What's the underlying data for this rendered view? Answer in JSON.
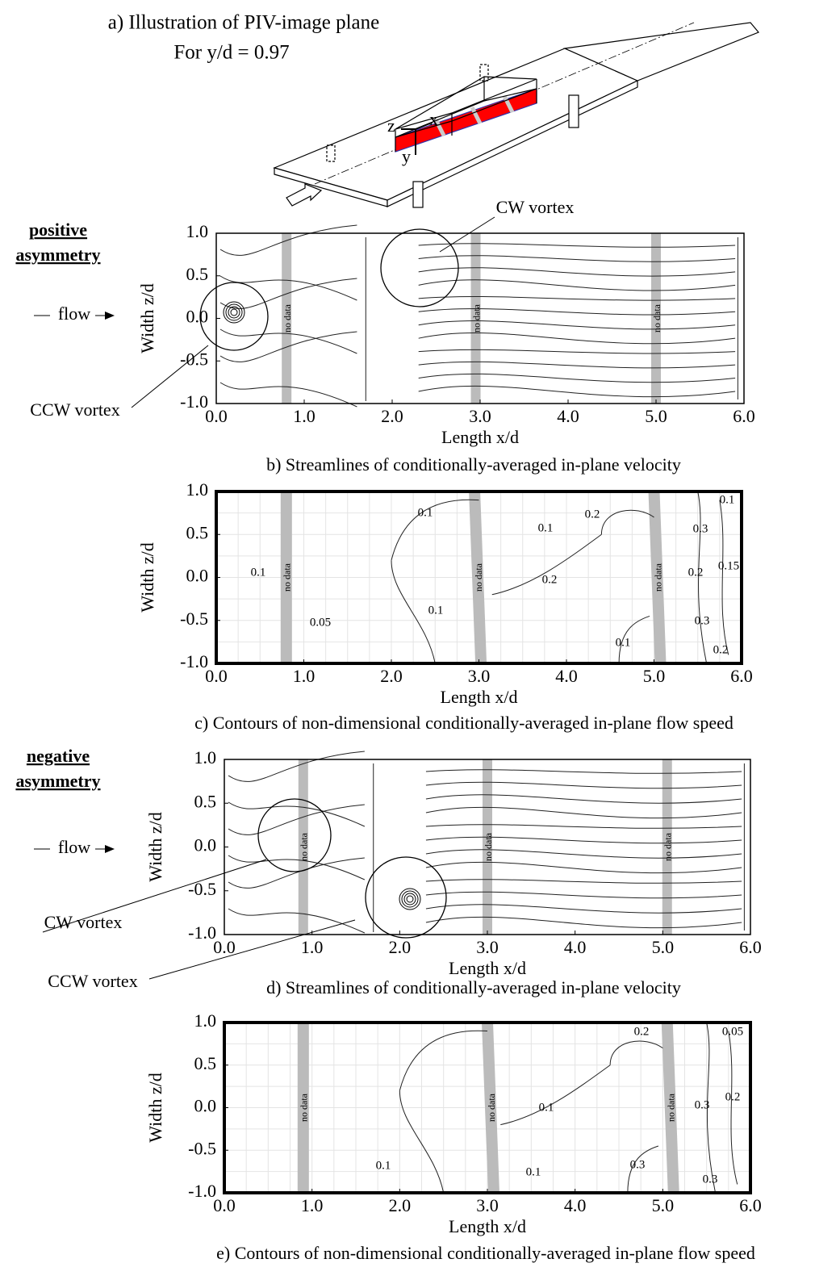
{
  "panel_a": {
    "title": "a) Illustration of PIV-image plane",
    "subtitle": "For y/d = 0.97",
    "axis_names": [
      "z",
      "x",
      "y"
    ]
  },
  "chart_data": [
    {
      "type": "streamline",
      "caption": "b) Streamlines of conditionally-averaged in-plane velocity",
      "x_label": "Length x/d",
      "y_label": "Width z/d",
      "xlim": [
        0,
        6
      ],
      "ylim": [
        -1,
        1
      ],
      "xticks": [
        {
          "value": 0,
          "label": "0.0"
        },
        {
          "value": 1,
          "label": "1.0"
        },
        {
          "value": 2,
          "label": "2.0"
        },
        {
          "value": 3,
          "label": "3.0"
        },
        {
          "value": 4,
          "label": "4.0"
        },
        {
          "value": 5,
          "label": "5.0"
        },
        {
          "value": 6,
          "label": "6.0"
        }
      ],
      "yticks": [
        {
          "value": 1,
          "label": "1.0"
        },
        {
          "value": 0.5,
          "label": "0.5"
        },
        {
          "value": 0,
          "label": "0.0"
        },
        {
          "value": -0.5,
          "label": "-0.5"
        },
        {
          "value": -1,
          "label": "-1.0"
        }
      ],
      "no_data_label": "no data",
      "group_label": [
        "positive",
        "asymmetry"
      ],
      "flow_label": "flow",
      "annotations": [
        "CW vortex",
        "CCW vortex"
      ],
      "grid": false
    },
    {
      "type": "contour",
      "caption": "c) Contours of non-dimensional conditionally-averaged in-plane flow speed",
      "x_label": "Length x/d",
      "y_label": "Width z/d",
      "xlim": [
        0,
        6
      ],
      "ylim": [
        -1,
        1
      ],
      "xticks": [
        {
          "value": 0,
          "label": "0.0"
        },
        {
          "value": 1,
          "label": "1.0"
        },
        {
          "value": 2,
          "label": "2.0"
        },
        {
          "value": 3,
          "label": "3.0"
        },
        {
          "value": 4,
          "label": "4.0"
        },
        {
          "value": 5,
          "label": "5.0"
        },
        {
          "value": 6,
          "label": "6.0"
        }
      ],
      "yticks": [
        {
          "value": 1,
          "label": "1.0"
        },
        {
          "value": 0.5,
          "label": "0.5"
        },
        {
          "value": 0,
          "label": "0.0"
        },
        {
          "value": -0.5,
          "label": "-0.5"
        },
        {
          "value": -1,
          "label": "-1.0"
        }
      ],
      "no_data_label": "no data",
      "contour_labels": [
        0.1,
        0.05,
        0.1,
        0.1,
        0.1,
        0.2,
        0.2,
        0.1,
        0.3,
        0.2,
        0.15,
        0.1,
        0.3,
        0.2
      ],
      "grid": true
    },
    {
      "type": "streamline",
      "caption": "d) Streamlines of conditionally-averaged in-plane velocity",
      "x_label": "Length x/d",
      "y_label": "Width z/d",
      "xlim": [
        0,
        6
      ],
      "ylim": [
        -1,
        1
      ],
      "xticks": [
        {
          "value": 0,
          "label": "0.0"
        },
        {
          "value": 1,
          "label": "1.0"
        },
        {
          "value": 2,
          "label": "2.0"
        },
        {
          "value": 3,
          "label": "3.0"
        },
        {
          "value": 4,
          "label": "4.0"
        },
        {
          "value": 5,
          "label": "5.0"
        },
        {
          "value": 6,
          "label": "6.0"
        }
      ],
      "yticks": [
        {
          "value": 1,
          "label": "1.0"
        },
        {
          "value": 0.5,
          "label": "0.5"
        },
        {
          "value": 0,
          "label": "0.0"
        },
        {
          "value": -0.5,
          "label": "-0.5"
        },
        {
          "value": -1,
          "label": "-1.0"
        }
      ],
      "no_data_label": "no data",
      "group_label": [
        "negative",
        "asymmetry"
      ],
      "flow_label": "flow",
      "annotations": [
        "CW vortex",
        "CCW vortex"
      ],
      "grid": false
    },
    {
      "type": "contour",
      "caption": "e) Contours of non-dimensional conditionally-averaged in-plane flow speed",
      "x_label": "Length x/d",
      "y_label": "Width z/d",
      "xlim": [
        0,
        6
      ],
      "ylim": [
        -1,
        1
      ],
      "xticks": [
        {
          "value": 0,
          "label": "0.0"
        },
        {
          "value": 1,
          "label": "1.0"
        },
        {
          "value": 2,
          "label": "2.0"
        },
        {
          "value": 3,
          "label": "3.0"
        },
        {
          "value": 4,
          "label": "4.0"
        },
        {
          "value": 5,
          "label": "5.0"
        },
        {
          "value": 6,
          "label": "6.0"
        }
      ],
      "yticks": [
        {
          "value": 1,
          "label": "1.0"
        },
        {
          "value": 0.5,
          "label": "0.5"
        },
        {
          "value": 0,
          "label": "0.0"
        },
        {
          "value": -0.5,
          "label": "-0.5"
        },
        {
          "value": -1,
          "label": "-1.0"
        }
      ],
      "no_data_label": "no data",
      "contour_labels": [
        0.2,
        0.05,
        0.1,
        0.3,
        0.2,
        0.1,
        0.1,
        0.3,
        0.3
      ],
      "grid": true
    }
  ]
}
